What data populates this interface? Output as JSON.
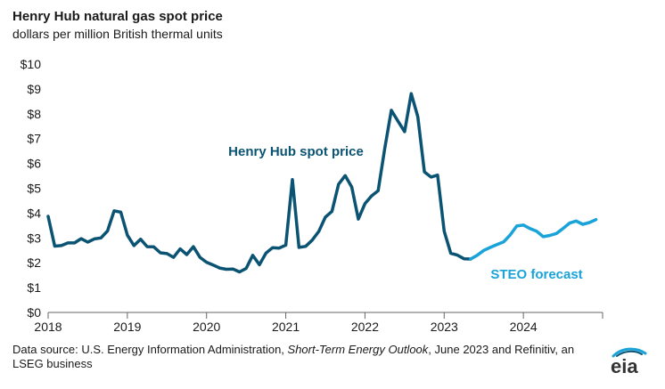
{
  "title": "Henry Hub natural gas spot price",
  "subtitle": "dollars per million British thermal units",
  "source": {
    "prefix": "Data source: U.S. Energy Information Administration, ",
    "italic": "Short-Term Energy Outlook",
    "suffix": ", June 2023 and Refinitiv, an LSEG business"
  },
  "logo_text": "eia",
  "colors": {
    "history": "#0b5373",
    "forecast": "#1aa3d9",
    "axis": "#666666",
    "annotation_history": "#0b5373",
    "annotation_forecast": "#1aa3d9"
  },
  "chart_data": {
    "type": "line",
    "title": "Henry Hub natural gas spot price",
    "ylabel": "dollars per million British thermal units",
    "xlim": [
      "2018-01",
      "2024-12"
    ],
    "ylim": [
      0,
      10
    ],
    "yticks": [
      0,
      1,
      2,
      3,
      4,
      5,
      6,
      7,
      8,
      9,
      10
    ],
    "ytick_labels": [
      "$0",
      "$1",
      "$2",
      "$3",
      "$4",
      "$5",
      "$6",
      "$7",
      "$8",
      "$9",
      "$10"
    ],
    "xtick_labels": [
      "2018",
      "2019",
      "2020",
      "2021",
      "2022",
      "2023",
      "2024"
    ],
    "grid": false,
    "annotations": [
      {
        "text": "Henry Hub spot price",
        "series": "history"
      },
      {
        "text": "STEO forecast",
        "series": "forecast"
      }
    ],
    "series": [
      {
        "id": "history",
        "x": [
          "2018-01",
          "2018-02",
          "2018-03",
          "2018-04",
          "2018-05",
          "2018-06",
          "2018-07",
          "2018-08",
          "2018-09",
          "2018-10",
          "2018-11",
          "2018-12",
          "2019-01",
          "2019-02",
          "2019-03",
          "2019-04",
          "2019-05",
          "2019-06",
          "2019-07",
          "2019-08",
          "2019-09",
          "2019-10",
          "2019-11",
          "2019-12",
          "2020-01",
          "2020-02",
          "2020-03",
          "2020-04",
          "2020-05",
          "2020-06",
          "2020-07",
          "2020-08",
          "2020-09",
          "2020-10",
          "2020-11",
          "2020-12",
          "2021-01",
          "2021-02",
          "2021-03",
          "2021-04",
          "2021-05",
          "2021-06",
          "2021-07",
          "2021-08",
          "2021-09",
          "2021-10",
          "2021-11",
          "2021-12",
          "2022-01",
          "2022-02",
          "2022-03",
          "2022-04",
          "2022-05",
          "2022-06",
          "2022-07",
          "2022-08",
          "2022-09",
          "2022-10",
          "2022-11",
          "2022-12",
          "2023-01",
          "2023-02",
          "2023-03",
          "2023-04",
          "2023-05"
        ],
        "values": [
          3.87,
          2.67,
          2.69,
          2.8,
          2.8,
          2.97,
          2.83,
          2.96,
          3.0,
          3.28,
          4.09,
          4.04,
          3.11,
          2.69,
          2.95,
          2.65,
          2.64,
          2.4,
          2.37,
          2.22,
          2.56,
          2.33,
          2.65,
          2.22,
          2.02,
          1.91,
          1.79,
          1.74,
          1.75,
          1.63,
          1.77,
          2.3,
          1.92,
          2.39,
          2.61,
          2.59,
          2.71,
          5.35,
          2.62,
          2.66,
          2.91,
          3.26,
          3.84,
          4.07,
          5.16,
          5.51,
          5.05,
          3.76,
          4.38,
          4.69,
          4.9,
          6.6,
          8.14,
          7.7,
          7.28,
          8.81,
          7.88,
          5.66,
          5.45,
          5.53,
          3.27,
          2.38,
          2.31,
          2.16,
          2.15
        ]
      },
      {
        "id": "forecast",
        "x": [
          "2023-05",
          "2023-06",
          "2023-07",
          "2023-08",
          "2023-09",
          "2023-10",
          "2023-11",
          "2023-12",
          "2024-01",
          "2024-02",
          "2024-03",
          "2024-04",
          "2024-05",
          "2024-06",
          "2024-07",
          "2024-08",
          "2024-09",
          "2024-10",
          "2024-11",
          "2024-12"
        ],
        "values": [
          2.15,
          2.3,
          2.5,
          2.62,
          2.73,
          2.84,
          3.12,
          3.48,
          3.52,
          3.38,
          3.27,
          3.05,
          3.1,
          3.18,
          3.38,
          3.6,
          3.68,
          3.55,
          3.62,
          3.74
        ]
      }
    ]
  }
}
